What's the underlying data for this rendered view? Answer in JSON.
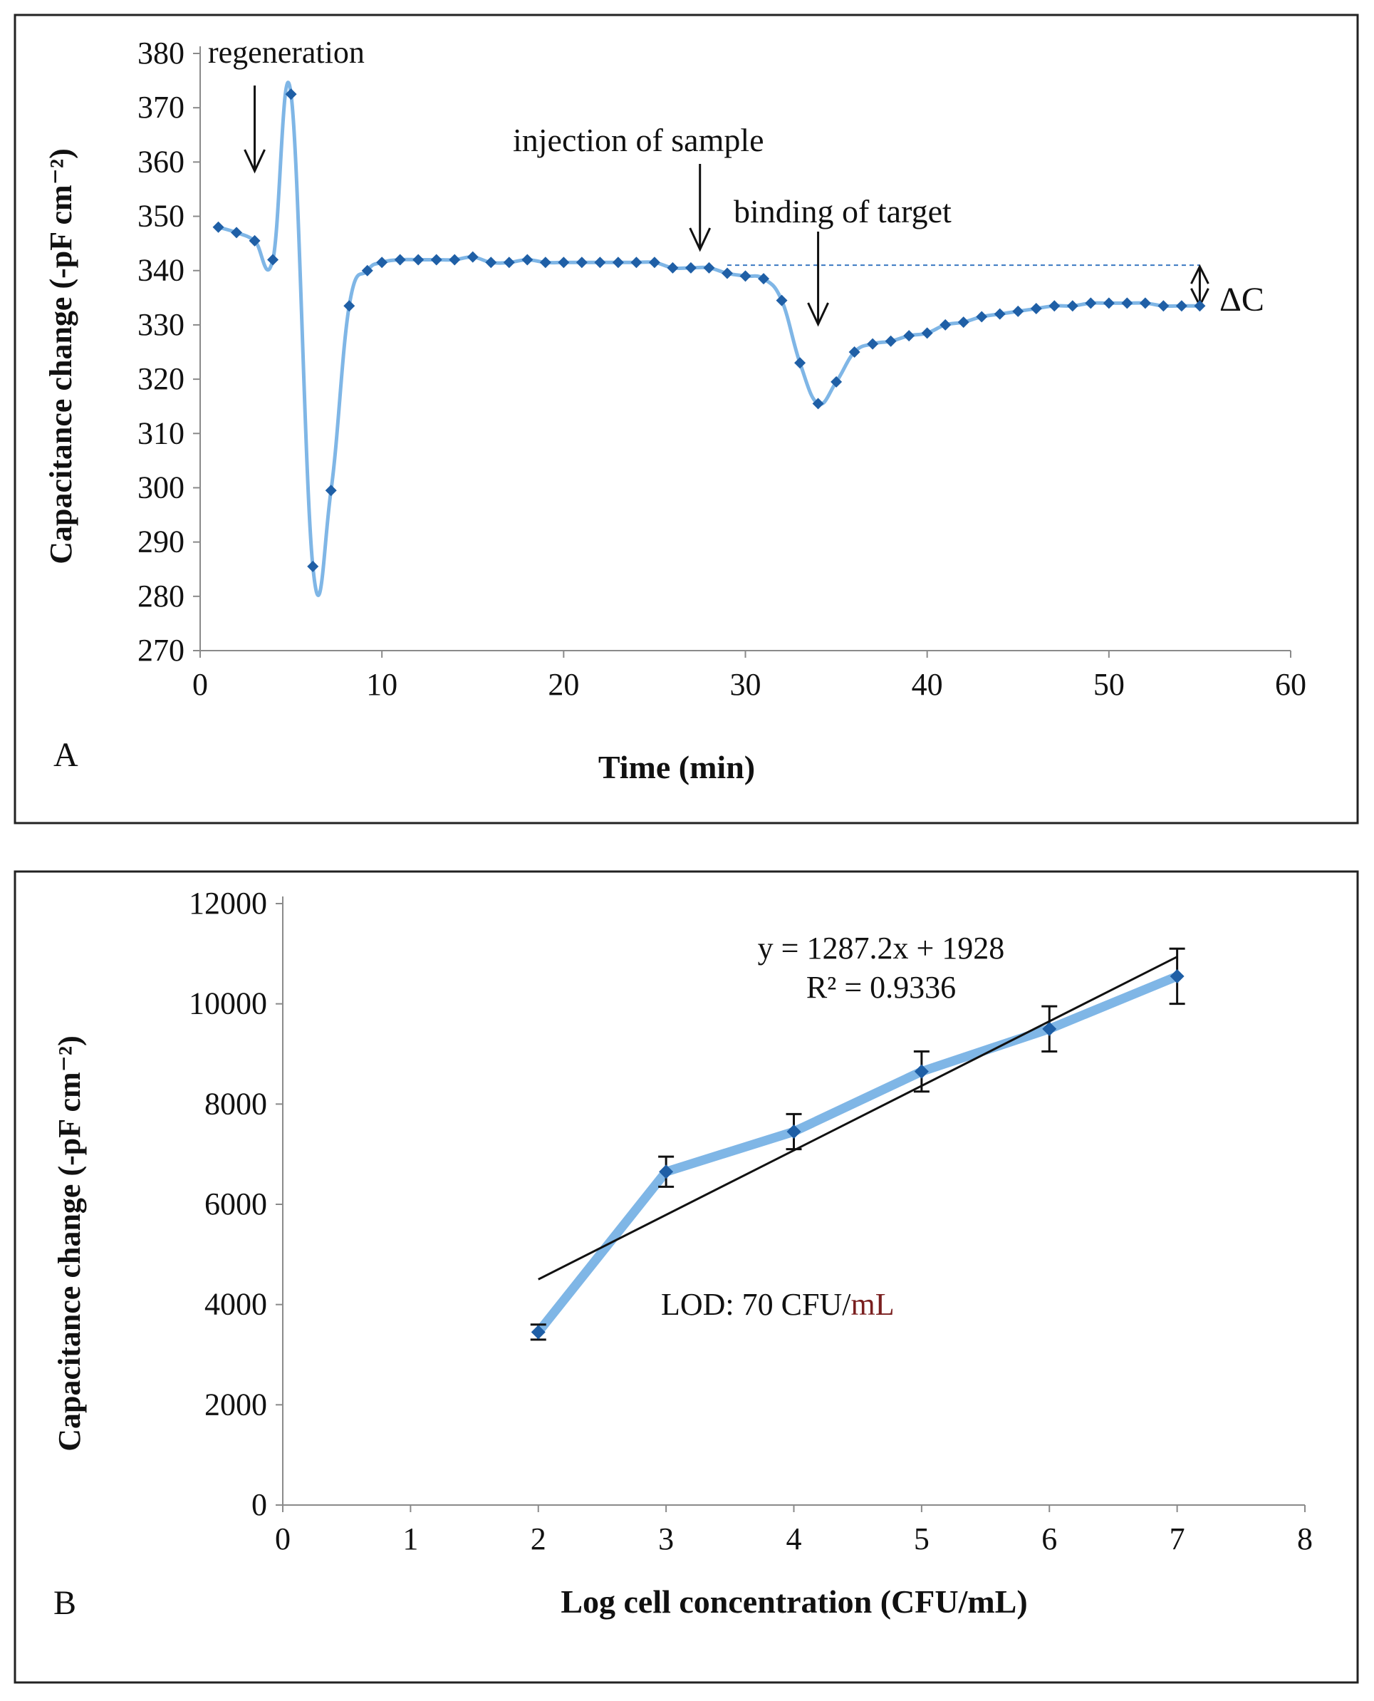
{
  "chart_data": [
    {
      "type": "line",
      "panel_label": "A",
      "title": "",
      "xlabel": "Time (min)",
      "ylabel": "Capacitance change (-pF cm⁻²)",
      "xlim": [
        0,
        60
      ],
      "ylim": [
        270,
        380
      ],
      "x_ticks": [
        "0",
        "10",
        "20",
        "30",
        "40",
        "50",
        "60"
      ],
      "y_ticks": [
        "270",
        "280",
        "290",
        "300",
        "310",
        "320",
        "330",
        "340",
        "350",
        "360",
        "370",
        "380"
      ],
      "grid": false,
      "series": [
        {
          "name": "Capacitance",
          "color": "#1f5fa6",
          "line_color": "#7fb6e6",
          "x": [
            1,
            2,
            3,
            4,
            5,
            6.2,
            7.2,
            8.2,
            9.2,
            10,
            11,
            12,
            13,
            14,
            15,
            16,
            17,
            18,
            19,
            20,
            21,
            22,
            23,
            24,
            25,
            26,
            27,
            28,
            29,
            30,
            31,
            32,
            33,
            34,
            35,
            36,
            37,
            38,
            39,
            40,
            41,
            42,
            43,
            44,
            45,
            46,
            47,
            48,
            49,
            50,
            51,
            52,
            53,
            54,
            55
          ],
          "y": [
            348,
            347,
            345.5,
            342,
            372.5,
            285.5,
            299.5,
            333.5,
            340,
            341.5,
            342,
            342,
            342,
            342,
            342.5,
            341.5,
            341.5,
            342,
            341.5,
            341.5,
            341.5,
            341.5,
            341.5,
            341.5,
            341.5,
            340.5,
            340.5,
            340.5,
            339.5,
            339,
            338.5,
            334.5,
            323,
            315.5,
            319.5,
            325,
            326.5,
            327,
            328,
            328.5,
            330,
            330.5,
            331.5,
            332,
            332.5,
            333,
            333.5,
            333.5,
            334,
            334,
            334,
            334,
            333.5,
            333.5,
            333.5
          ]
        }
      ],
      "baseline_y": 341,
      "baseline_x_range": [
        29,
        55
      ],
      "annotations": [
        {
          "text": "regeneration",
          "x": 3
        },
        {
          "text": "injection of sample",
          "x": 27.5
        },
        {
          "text": "binding of target",
          "x": 34
        },
        {
          "text": "ΔC"
        }
      ]
    },
    {
      "type": "line",
      "panel_label": "B",
      "title": "",
      "xlabel": "Log cell concentration (CFU/mL)",
      "ylabel": "Capacitance change (-pF cm⁻²)",
      "xlim": [
        0,
        8
      ],
      "ylim": [
        0,
        12000
      ],
      "x_ticks": [
        "0",
        "1",
        "2",
        "3",
        "4",
        "5",
        "6",
        "7",
        "8"
      ],
      "y_ticks": [
        "0",
        "2000",
        "4000",
        "6000",
        "8000",
        "10000",
        "12000"
      ],
      "grid": false,
      "series": [
        {
          "name": "Capacitance",
          "color": "#1f5fa6",
          "line_color": "#7fb6e6",
          "x": [
            2,
            3,
            4,
            5,
            6,
            7
          ],
          "y": [
            3450,
            6650,
            7450,
            8650,
            9500,
            10550
          ],
          "error": [
            150,
            300,
            350,
            400,
            450,
            550
          ]
        }
      ],
      "trendline": {
        "slope": 1287.2,
        "intercept": 1928,
        "x_range": [
          2,
          7
        ]
      },
      "equation": "y = 1287.2x + 1928",
      "r_squared": "R² = 0.9336",
      "lod_prefix": "LOD: 70 CFU/",
      "lod_unit": "mL"
    }
  ]
}
